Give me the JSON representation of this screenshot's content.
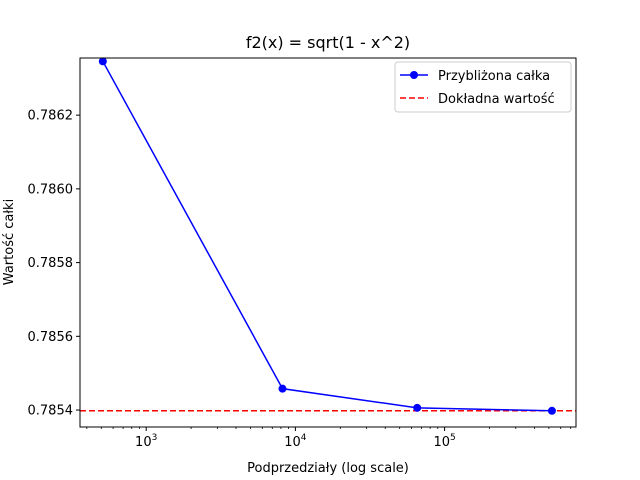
{
  "chart_data": {
    "type": "line",
    "title": "f2(x) = sqrt(1 - x^2)",
    "xlabel": "Podprzedziały (log scale)",
    "ylabel": "Wartość całki",
    "xscale": "log",
    "xlim": [
      360,
      760000
    ],
    "ylim": [
      0.785354,
      0.786355
    ],
    "x_ticks": [
      {
        "value": 1000,
        "base": "10",
        "exp": "3"
      },
      {
        "value": 10000,
        "base": "10",
        "exp": "4"
      },
      {
        "value": 100000,
        "base": "10",
        "exp": "5"
      }
    ],
    "y_ticks": [
      {
        "value": 0.7854,
        "label": "0.7854"
      },
      {
        "value": 0.7856,
        "label": "0.7856"
      },
      {
        "value": 0.7858,
        "label": "0.7858"
      },
      {
        "value": 0.786,
        "label": "0.7860"
      },
      {
        "value": 0.7862,
        "label": "0.7862"
      }
    ],
    "series": [
      {
        "name": "Przybliżona całka",
        "color": "#0000ff",
        "style": "solid",
        "marker": "circle",
        "x": [
          512,
          8192,
          65536,
          524288
        ],
        "y": [
          0.786346,
          0.785458,
          0.785406,
          0.785398
        ]
      }
    ],
    "hlines": [
      {
        "name": "Dokładna wartość",
        "y": 0.785398,
        "color": "#ff0000",
        "style": "dashed"
      }
    ],
    "legend": "upper right",
    "grid": false
  }
}
